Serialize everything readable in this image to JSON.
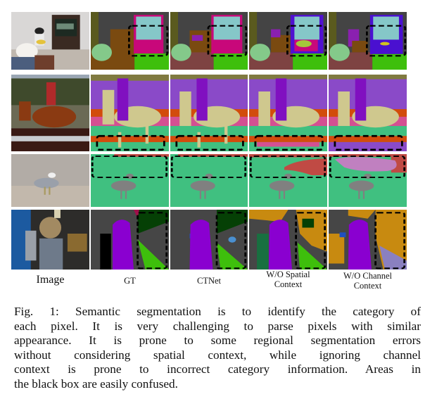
{
  "figure": {
    "columns": [
      "Image",
      "GT",
      "CTNet",
      "W/O Spatial Context",
      "W/O Channel Context"
    ],
    "column_labels": [
      {
        "line1": "Image",
        "line2": ""
      },
      {
        "line1": "GT",
        "line2": ""
      },
      {
        "line1": "CTNet",
        "line2": ""
      },
      {
        "line1": "W/O Spatial",
        "line2": "Context"
      },
      {
        "line1": "W/O Channel",
        "line2": "Context"
      }
    ],
    "caption_lines": [
      "Fig. 1: Semantic segmentation is to identify the category of",
      "each pixel. It is very challenging to parse pixels with similar",
      "appearance. It is prone to some regional segmentation errors",
      "without considering spatial context, while ignoring channel",
      "context is prone to incorrect category information. Areas in",
      "the black box are easily confused."
    ]
  }
}
